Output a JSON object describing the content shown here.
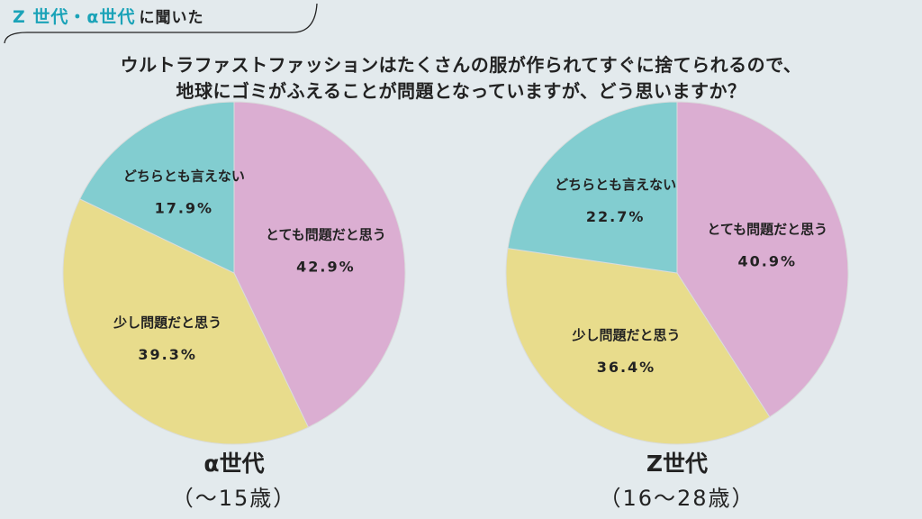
{
  "header": {
    "tag_accent": "Z 世代・α世代",
    "tag_rest": "に聞いた"
  },
  "question": {
    "line1": "ウルトラファストファッションはたくさんの服が作られてすぐに捨てられるので、",
    "line2": "地球にゴミがふえることが問題となっていますが、どう思いますか？"
  },
  "colors": {
    "very_problem": "#dbaed2",
    "slight_problem": "#e8dc8c",
    "neutral": "#82cdd0",
    "background": "#e3eaed",
    "accent": "#1ba3b8"
  },
  "chart_data": [
    {
      "type": "pie",
      "title": "α世代",
      "subtitle": "（〜15歳）",
      "slices": [
        {
          "label": "とても問題だと思う",
          "value": 42.9,
          "display": "42.9%",
          "color": "#dbaed2"
        },
        {
          "label": "少し問題だと思う",
          "value": 39.3,
          "display": "39.3%",
          "color": "#e8dc8c"
        },
        {
          "label": "どちらとも言えない",
          "value": 17.9,
          "display": "17.9%",
          "color": "#82cdd0"
        }
      ]
    },
    {
      "type": "pie",
      "title": "Z世代",
      "subtitle": "（16〜28歳）",
      "slices": [
        {
          "label": "とても問題だと思う",
          "value": 40.9,
          "display": "40.9%",
          "color": "#dbaed2"
        },
        {
          "label": "少し問題だと思う",
          "value": 36.4,
          "display": "36.4%",
          "color": "#e8dc8c"
        },
        {
          "label": "どちらとも言えない",
          "value": 22.7,
          "display": "22.7%",
          "color": "#82cdd0"
        }
      ]
    }
  ]
}
